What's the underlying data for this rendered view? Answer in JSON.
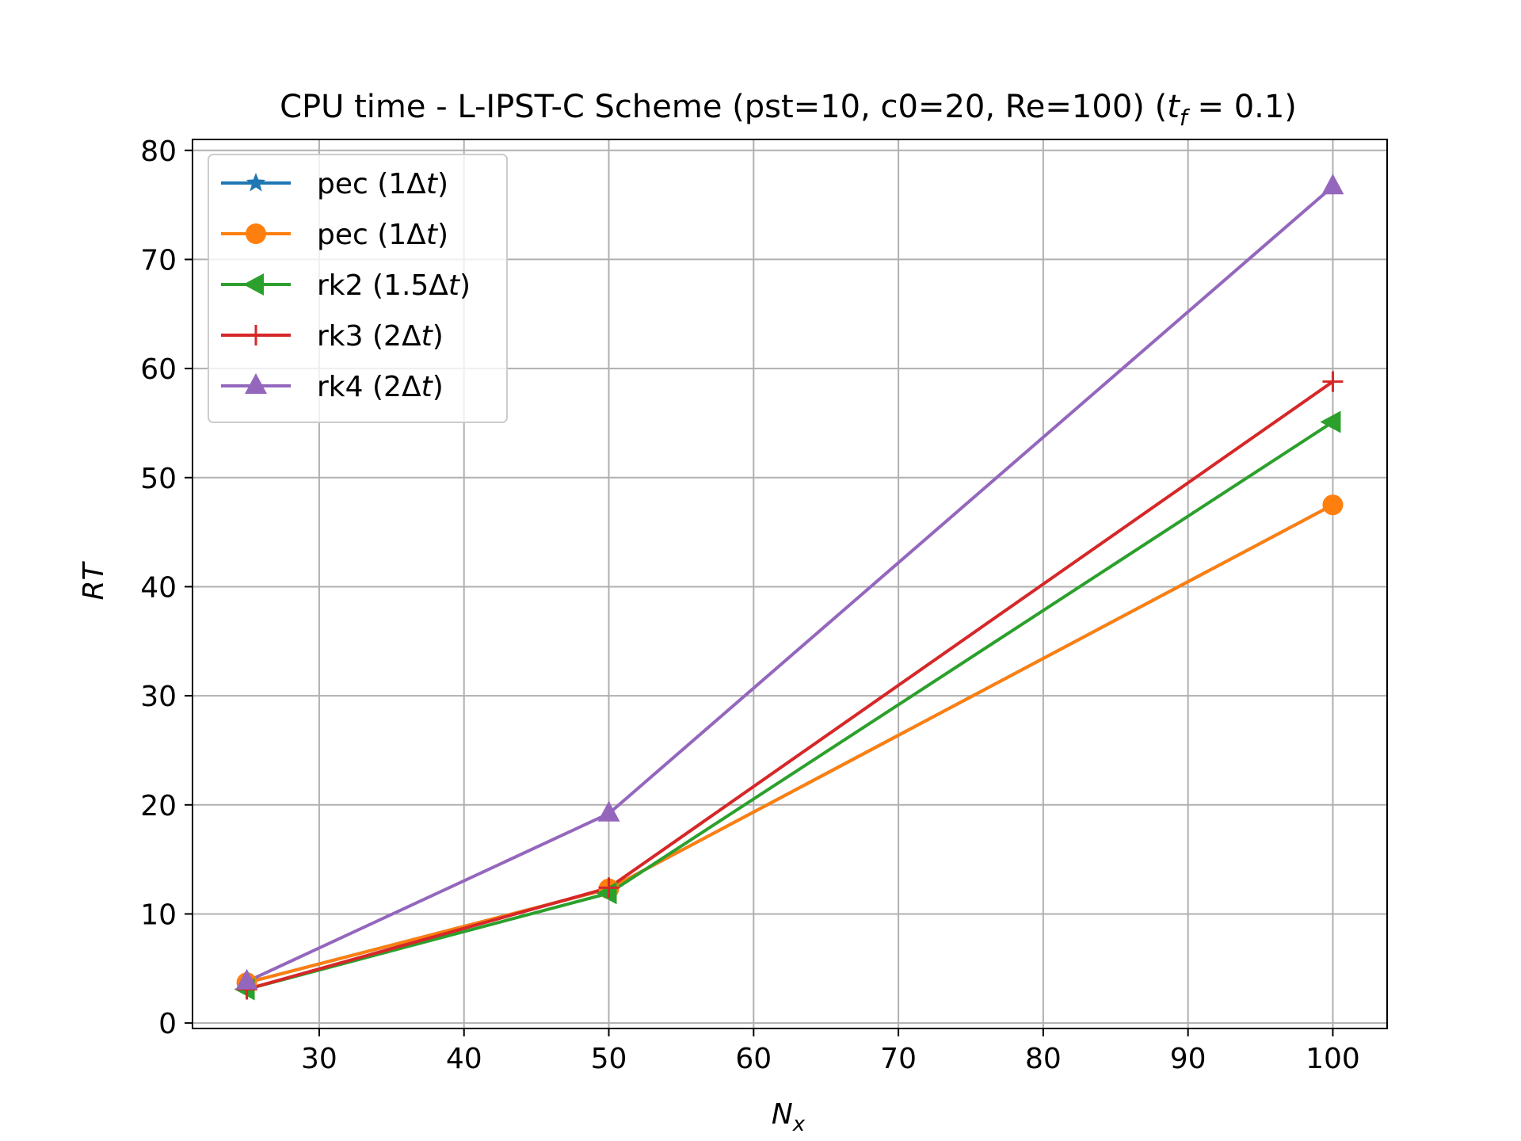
{
  "chart_data": {
    "type": "line",
    "title_main": "CPU time - L-IPST-C Scheme (pst=10, c0=20, Re=100) (",
    "title_math_sym": "t",
    "title_math_sub": "f",
    "title_math_rest": " = 0.1)",
    "xlabel_sym": "N",
    "xlabel_sub": "x",
    "ylabel": "RT",
    "x": [
      25,
      50,
      100
    ],
    "xlim": [
      21.25,
      103.75
    ],
    "ylim": [
      -0.5,
      81
    ],
    "xticks": [
      30,
      40,
      50,
      60,
      70,
      80,
      90,
      100
    ],
    "yticks": [
      0,
      10,
      20,
      30,
      40,
      50,
      60,
      70,
      80
    ],
    "grid": true,
    "legend_position": "top-left",
    "series": [
      {
        "name": "pec (1Δt)",
        "label_pre": "pec (1Δ",
        "label_it": "t",
        "label_post": ")",
        "color": "#1f77b4",
        "marker": "star",
        "values": [
          3.7,
          12.3,
          47.5
        ]
      },
      {
        "name": "pec (1Δt)",
        "label_pre": "pec (1Δ",
        "label_it": "t",
        "label_post": ")",
        "color": "#ff7f0e",
        "marker": "circle",
        "values": [
          3.7,
          12.3,
          47.5
        ]
      },
      {
        "name": "rk2 (1.5Δt)",
        "label_pre": "rk2 (1.5Δ",
        "label_it": "t",
        "label_post": ")",
        "color": "#2ca02c",
        "marker": "triangle-left",
        "values": [
          3.1,
          11.9,
          55.1
        ]
      },
      {
        "name": "rk3 (2Δt)",
        "label_pre": "rk3 (2Δ",
        "label_it": "t",
        "label_post": ")",
        "color": "#d62728",
        "marker": "plus",
        "values": [
          3.1,
          12.4,
          58.8
        ]
      },
      {
        "name": "rk4 (2Δt)",
        "label_pre": "rk4 (2Δ",
        "label_it": "t",
        "label_post": ")",
        "color": "#9467bd",
        "marker": "triangle-up",
        "values": [
          3.8,
          19.2,
          76.7
        ]
      }
    ]
  }
}
